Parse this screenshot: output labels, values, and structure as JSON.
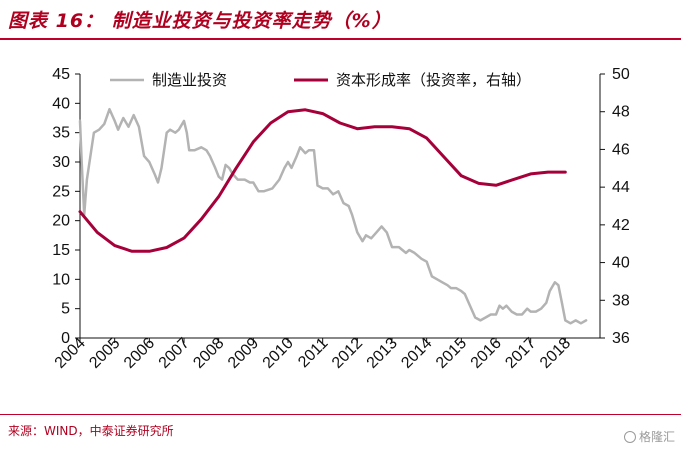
{
  "header": {
    "title": "图表 16：  制造业投资与投资率走势（%）"
  },
  "footer": {
    "source": "来源：WIND，中泰证券研究所",
    "watermark": "格隆汇"
  },
  "chart_data": {
    "type": "line",
    "title": "图表 16：制造业投资与投资率走势（%）",
    "x_range": [
      2004.0,
      2019.0
    ],
    "x_tick_labels": [
      "2004",
      "2005",
      "2006",
      "2007",
      "2008",
      "2009",
      "2010",
      "2011",
      "2012",
      "2013",
      "2014",
      "2015",
      "2016",
      "2017",
      "2018"
    ],
    "y_left": {
      "range": [
        0,
        45
      ],
      "ticks": [
        0,
        5,
        10,
        15,
        20,
        25,
        30,
        35,
        40,
        45
      ]
    },
    "y_right": {
      "range": [
        36,
        50
      ],
      "ticks": [
        36,
        38,
        40,
        42,
        44,
        46,
        48,
        50
      ]
    },
    "legend_position": "top",
    "grid": false,
    "series": [
      {
        "name": "制造业投资",
        "axis": "left",
        "color": "#b3b3b3",
        "points": [
          [
            2004.0,
            37.0
          ],
          [
            2004.05,
            30.0
          ],
          [
            2004.12,
            21.0
          ],
          [
            2004.2,
            27.0
          ],
          [
            2004.3,
            31.0
          ],
          [
            2004.4,
            35.0
          ],
          [
            2004.55,
            35.5
          ],
          [
            2004.7,
            36.5
          ],
          [
            2004.85,
            39.0
          ],
          [
            2005.0,
            37.0
          ],
          [
            2005.1,
            35.5
          ],
          [
            2005.25,
            37.5
          ],
          [
            2005.4,
            36.0
          ],
          [
            2005.55,
            38.0
          ],
          [
            2005.7,
            36.0
          ],
          [
            2005.85,
            31.0
          ],
          [
            2006.0,
            30.0
          ],
          [
            2006.15,
            28.0
          ],
          [
            2006.25,
            26.5
          ],
          [
            2006.35,
            29.0
          ],
          [
            2006.5,
            35.0
          ],
          [
            2006.6,
            35.5
          ],
          [
            2006.75,
            35.0
          ],
          [
            2006.85,
            35.5
          ],
          [
            2007.0,
            37.0
          ],
          [
            2007.08,
            35.0
          ],
          [
            2007.15,
            32.0
          ],
          [
            2007.3,
            32.0
          ],
          [
            2007.5,
            32.5
          ],
          [
            2007.65,
            32.0
          ],
          [
            2007.75,
            31.0
          ],
          [
            2007.9,
            29.0
          ],
          [
            2008.0,
            27.5
          ],
          [
            2008.1,
            27.0
          ],
          [
            2008.2,
            29.5
          ],
          [
            2008.3,
            29.0
          ],
          [
            2008.4,
            28.0
          ],
          [
            2008.55,
            27.0
          ],
          [
            2008.75,
            27.0
          ],
          [
            2008.9,
            26.5
          ],
          [
            2009.0,
            26.5
          ],
          [
            2009.15,
            25.0
          ],
          [
            2009.3,
            25.0
          ],
          [
            2009.55,
            25.5
          ],
          [
            2009.75,
            27.0
          ],
          [
            2009.9,
            29.0
          ],
          [
            2010.0,
            30.0
          ],
          [
            2010.1,
            29.0
          ],
          [
            2010.25,
            31.0
          ],
          [
            2010.35,
            32.5
          ],
          [
            2010.5,
            31.5
          ],
          [
            2010.6,
            32.0
          ],
          [
            2010.75,
            32.0
          ],
          [
            2010.85,
            26.0
          ],
          [
            2011.0,
            25.5
          ],
          [
            2011.15,
            25.5
          ],
          [
            2011.3,
            24.5
          ],
          [
            2011.45,
            25.0
          ],
          [
            2011.6,
            23.0
          ],
          [
            2011.75,
            22.5
          ],
          [
            2011.85,
            21.0
          ],
          [
            2012.0,
            18.0
          ],
          [
            2012.15,
            16.5
          ],
          [
            2012.25,
            17.5
          ],
          [
            2012.4,
            17.0
          ],
          [
            2012.55,
            18.0
          ],
          [
            2012.7,
            19.0
          ],
          [
            2012.85,
            18.0
          ],
          [
            2013.0,
            15.5
          ],
          [
            2013.2,
            15.5
          ],
          [
            2013.4,
            14.5
          ],
          [
            2013.5,
            15.0
          ],
          [
            2013.65,
            14.5
          ],
          [
            2013.85,
            13.5
          ],
          [
            2014.0,
            13.0
          ],
          [
            2014.15,
            10.5
          ],
          [
            2014.3,
            10.0
          ],
          [
            2014.45,
            9.5
          ],
          [
            2014.6,
            9.0
          ],
          [
            2014.7,
            8.5
          ],
          [
            2014.85,
            8.5
          ],
          [
            2015.0,
            8.0
          ],
          [
            2015.1,
            7.5
          ],
          [
            2015.25,
            5.5
          ],
          [
            2015.4,
            3.5
          ],
          [
            2015.55,
            3.0
          ],
          [
            2015.7,
            3.5
          ],
          [
            2015.85,
            4.0
          ],
          [
            2016.0,
            4.0
          ],
          [
            2016.1,
            5.5
          ],
          [
            2016.2,
            5.0
          ],
          [
            2016.3,
            5.5
          ],
          [
            2016.45,
            4.5
          ],
          [
            2016.6,
            4.0
          ],
          [
            2016.75,
            4.0
          ],
          [
            2016.9,
            5.0
          ],
          [
            2017.0,
            4.5
          ],
          [
            2017.15,
            4.5
          ],
          [
            2017.3,
            5.0
          ],
          [
            2017.45,
            6.0
          ],
          [
            2017.55,
            8.0
          ],
          [
            2017.7,
            9.5
          ],
          [
            2017.8,
            9.0
          ],
          [
            2017.9,
            6.0
          ],
          [
            2018.0,
            3.0
          ],
          [
            2018.15,
            2.5
          ],
          [
            2018.3,
            3.0
          ],
          [
            2018.45,
            2.5
          ],
          [
            2018.6,
            3.0
          ]
        ]
      },
      {
        "name": "资本形成率（投资率，右轴）",
        "axis": "right",
        "color": "#a6003a",
        "points": [
          [
            2004.0,
            42.7
          ],
          [
            2004.5,
            41.6
          ],
          [
            2005.0,
            40.9
          ],
          [
            2005.5,
            40.6
          ],
          [
            2006.0,
            40.6
          ],
          [
            2006.5,
            40.8
          ],
          [
            2007.0,
            41.3
          ],
          [
            2007.5,
            42.3
          ],
          [
            2008.0,
            43.5
          ],
          [
            2008.5,
            45.0
          ],
          [
            2009.0,
            46.4
          ],
          [
            2009.5,
            47.4
          ],
          [
            2010.0,
            48.0
          ],
          [
            2010.5,
            48.1
          ],
          [
            2011.0,
            47.9
          ],
          [
            2011.5,
            47.4
          ],
          [
            2012.0,
            47.1
          ],
          [
            2012.5,
            47.2
          ],
          [
            2013.0,
            47.2
          ],
          [
            2013.5,
            47.1
          ],
          [
            2014.0,
            46.6
          ],
          [
            2014.5,
            45.6
          ],
          [
            2015.0,
            44.6
          ],
          [
            2015.5,
            44.2
          ],
          [
            2016.0,
            44.1
          ],
          [
            2016.5,
            44.4
          ],
          [
            2017.0,
            44.7
          ],
          [
            2017.5,
            44.8
          ],
          [
            2018.0,
            44.8
          ]
        ]
      }
    ]
  }
}
